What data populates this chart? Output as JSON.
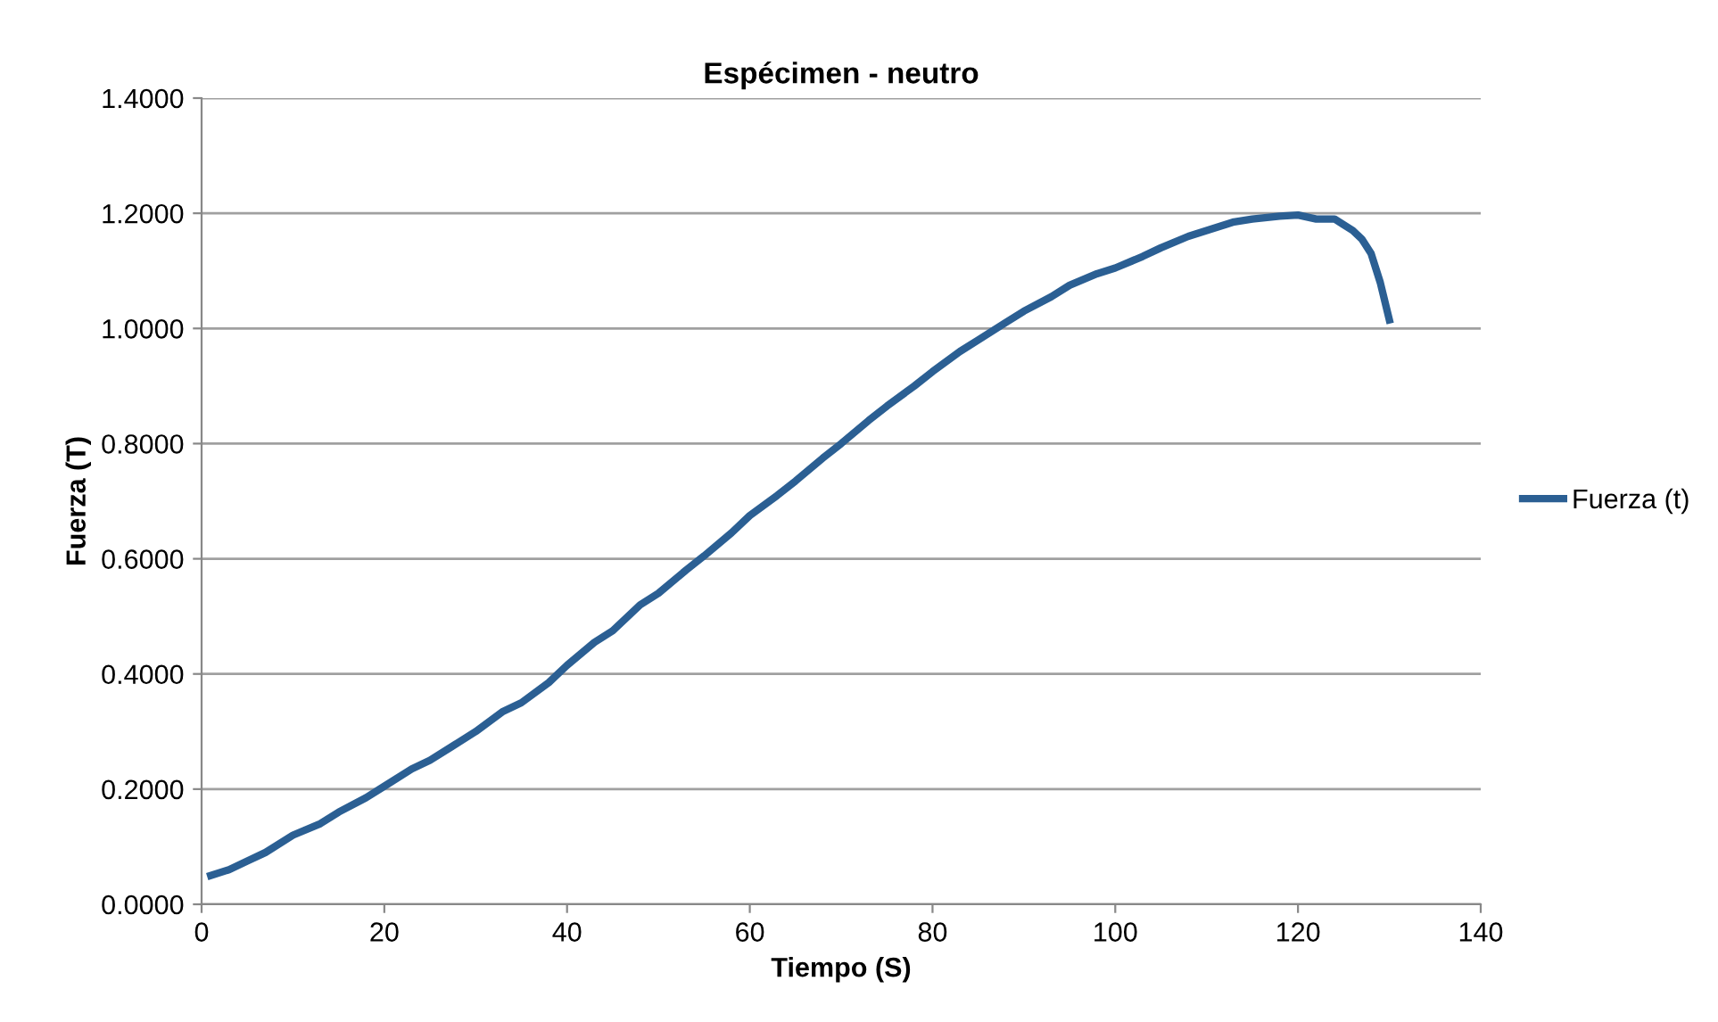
{
  "chart_data": {
    "type": "line",
    "title": "Espécimen - neutro",
    "xlabel": "Tiempo (S)",
    "ylabel": "Fuerza (T)",
    "series": [
      {
        "name": "Fuerza (t)",
        "color": "#2b5f93",
        "x": [
          1,
          3,
          5,
          7,
          10,
          13,
          15,
          18,
          20,
          23,
          25,
          28,
          30,
          33,
          35,
          38,
          40,
          43,
          45,
          48,
          50,
          53,
          55,
          58,
          60,
          63,
          65,
          68,
          70,
          73,
          75,
          78,
          80,
          83,
          85,
          88,
          90,
          93,
          95,
          98,
          100,
          103,
          105,
          108,
          110,
          113,
          115,
          118,
          120,
          122,
          124,
          126,
          127,
          128,
          129,
          130
        ],
        "values": [
          0.05,
          0.06,
          0.075,
          0.09,
          0.12,
          0.14,
          0.16,
          0.185,
          0.205,
          0.235,
          0.25,
          0.28,
          0.3,
          0.335,
          0.35,
          0.385,
          0.415,
          0.455,
          0.475,
          0.52,
          0.54,
          0.58,
          0.605,
          0.645,
          0.675,
          0.71,
          0.735,
          0.775,
          0.8,
          0.84,
          0.865,
          0.9,
          0.925,
          0.96,
          0.98,
          1.01,
          1.03,
          1.055,
          1.075,
          1.095,
          1.105,
          1.125,
          1.14,
          1.16,
          1.17,
          1.185,
          1.19,
          1.195,
          1.197,
          1.19,
          1.19,
          1.17,
          1.155,
          1.13,
          1.08,
          1.015
        ]
      }
    ],
    "xlim": [
      0,
      140
    ],
    "xticks": [
      0,
      20,
      40,
      60,
      80,
      100,
      120,
      140
    ],
    "ylim": [
      0,
      1.4
    ],
    "yticks": [
      {
        "value": 0,
        "label": "0.0000"
      },
      {
        "value": 0.2,
        "label": "0.2000"
      },
      {
        "value": 0.4,
        "label": "0.4000"
      },
      {
        "value": 0.6,
        "label": "0.6000"
      },
      {
        "value": 0.8,
        "label": "0.8000"
      },
      {
        "value": 1.0,
        "label": "1.0000"
      },
      {
        "value": 1.2,
        "label": "1.2000"
      },
      {
        "value": 1.4,
        "label": "1.4000"
      }
    ],
    "grid": "y",
    "legend": "right",
    "marker": "none",
    "line_style": "solid"
  }
}
